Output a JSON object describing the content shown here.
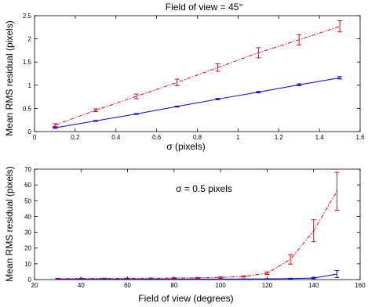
{
  "chart_data": [
    {
      "type": "line",
      "title": "Field of view = 45°",
      "xlabel": "σ (pixels)",
      "ylabel": "Mean RMS residual (pixels)",
      "xlim": [
        0,
        1.6
      ],
      "ylim": [
        0,
        2.5
      ],
      "xticks": [
        "0",
        "0.2",
        "0.4",
        "0.6",
        "0.8",
        "1",
        "1.2",
        "1.4",
        "1.6"
      ],
      "yticks": [
        "0",
        "0.5",
        "1",
        "1.5",
        "2",
        "2.5"
      ],
      "grid": false,
      "series": [
        {
          "color": "#ff0000",
          "style": "dashed",
          "x": [
            0.1,
            0.3,
            0.5,
            0.7,
            0.9,
            1.1,
            1.3,
            1.5
          ],
          "y": [
            0.14,
            0.46,
            0.76,
            1.06,
            1.38,
            1.7,
            1.98,
            2.27
          ],
          "err": [
            0.03,
            0.03,
            0.05,
            0.07,
            0.08,
            0.11,
            0.11,
            0.12
          ]
        },
        {
          "color": "#0000ff",
          "style": "solid",
          "x": [
            0.1,
            0.3,
            0.5,
            0.7,
            0.9,
            1.1,
            1.3,
            1.5
          ],
          "y": [
            0.08,
            0.23,
            0.38,
            0.54,
            0.7,
            0.85,
            1.01,
            1.16
          ],
          "err": [
            0.01,
            0.01,
            0.01,
            0.01,
            0.015,
            0.015,
            0.02,
            0.025
          ]
        }
      ]
    },
    {
      "type": "line",
      "title": "σ = 0.5 pixels",
      "xlabel": "Field of view (degrees)",
      "ylabel": "Mean RMS residual (pixels)",
      "xlim": [
        20,
        160
      ],
      "ylim": [
        0,
        70
      ],
      "xticks": [
        "20",
        "40",
        "60",
        "80",
        "100",
        "120",
        "140",
        "160"
      ],
      "yticks": [
        "0",
        "10",
        "20",
        "30",
        "40",
        "50",
        "60",
        "70"
      ],
      "grid": false,
      "series": [
        {
          "color": "#ff0000",
          "style": "dashed",
          "x": [
            30,
            40,
            50,
            60,
            70,
            80,
            90,
            100,
            110,
            120,
            130,
            140,
            150
          ],
          "y": [
            0.6,
            0.65,
            0.7,
            0.75,
            0.8,
            0.95,
            1.1,
            1.4,
            2.0,
            4.0,
            12.8,
            31.0,
            56.0
          ],
          "err": [
            0.2,
            0.2,
            0.2,
            0.2,
            0.2,
            0.3,
            0.3,
            0.3,
            0.4,
            0.8,
            3.0,
            7.0,
            12.0
          ]
        },
        {
          "color": "#0000ff",
          "style": "solid",
          "x": [
            30,
            40,
            50,
            60,
            70,
            80,
            90,
            100,
            110,
            120,
            130,
            140,
            150
          ],
          "y": [
            0.35,
            0.35,
            0.35,
            0.35,
            0.35,
            0.35,
            0.35,
            0.4,
            0.4,
            0.45,
            0.6,
            1.0,
            3.5
          ],
          "err": [
            0.1,
            0.1,
            0.1,
            0.1,
            0.1,
            0.1,
            0.1,
            0.1,
            0.1,
            0.1,
            0.2,
            0.4,
            2.2
          ]
        }
      ]
    }
  ]
}
